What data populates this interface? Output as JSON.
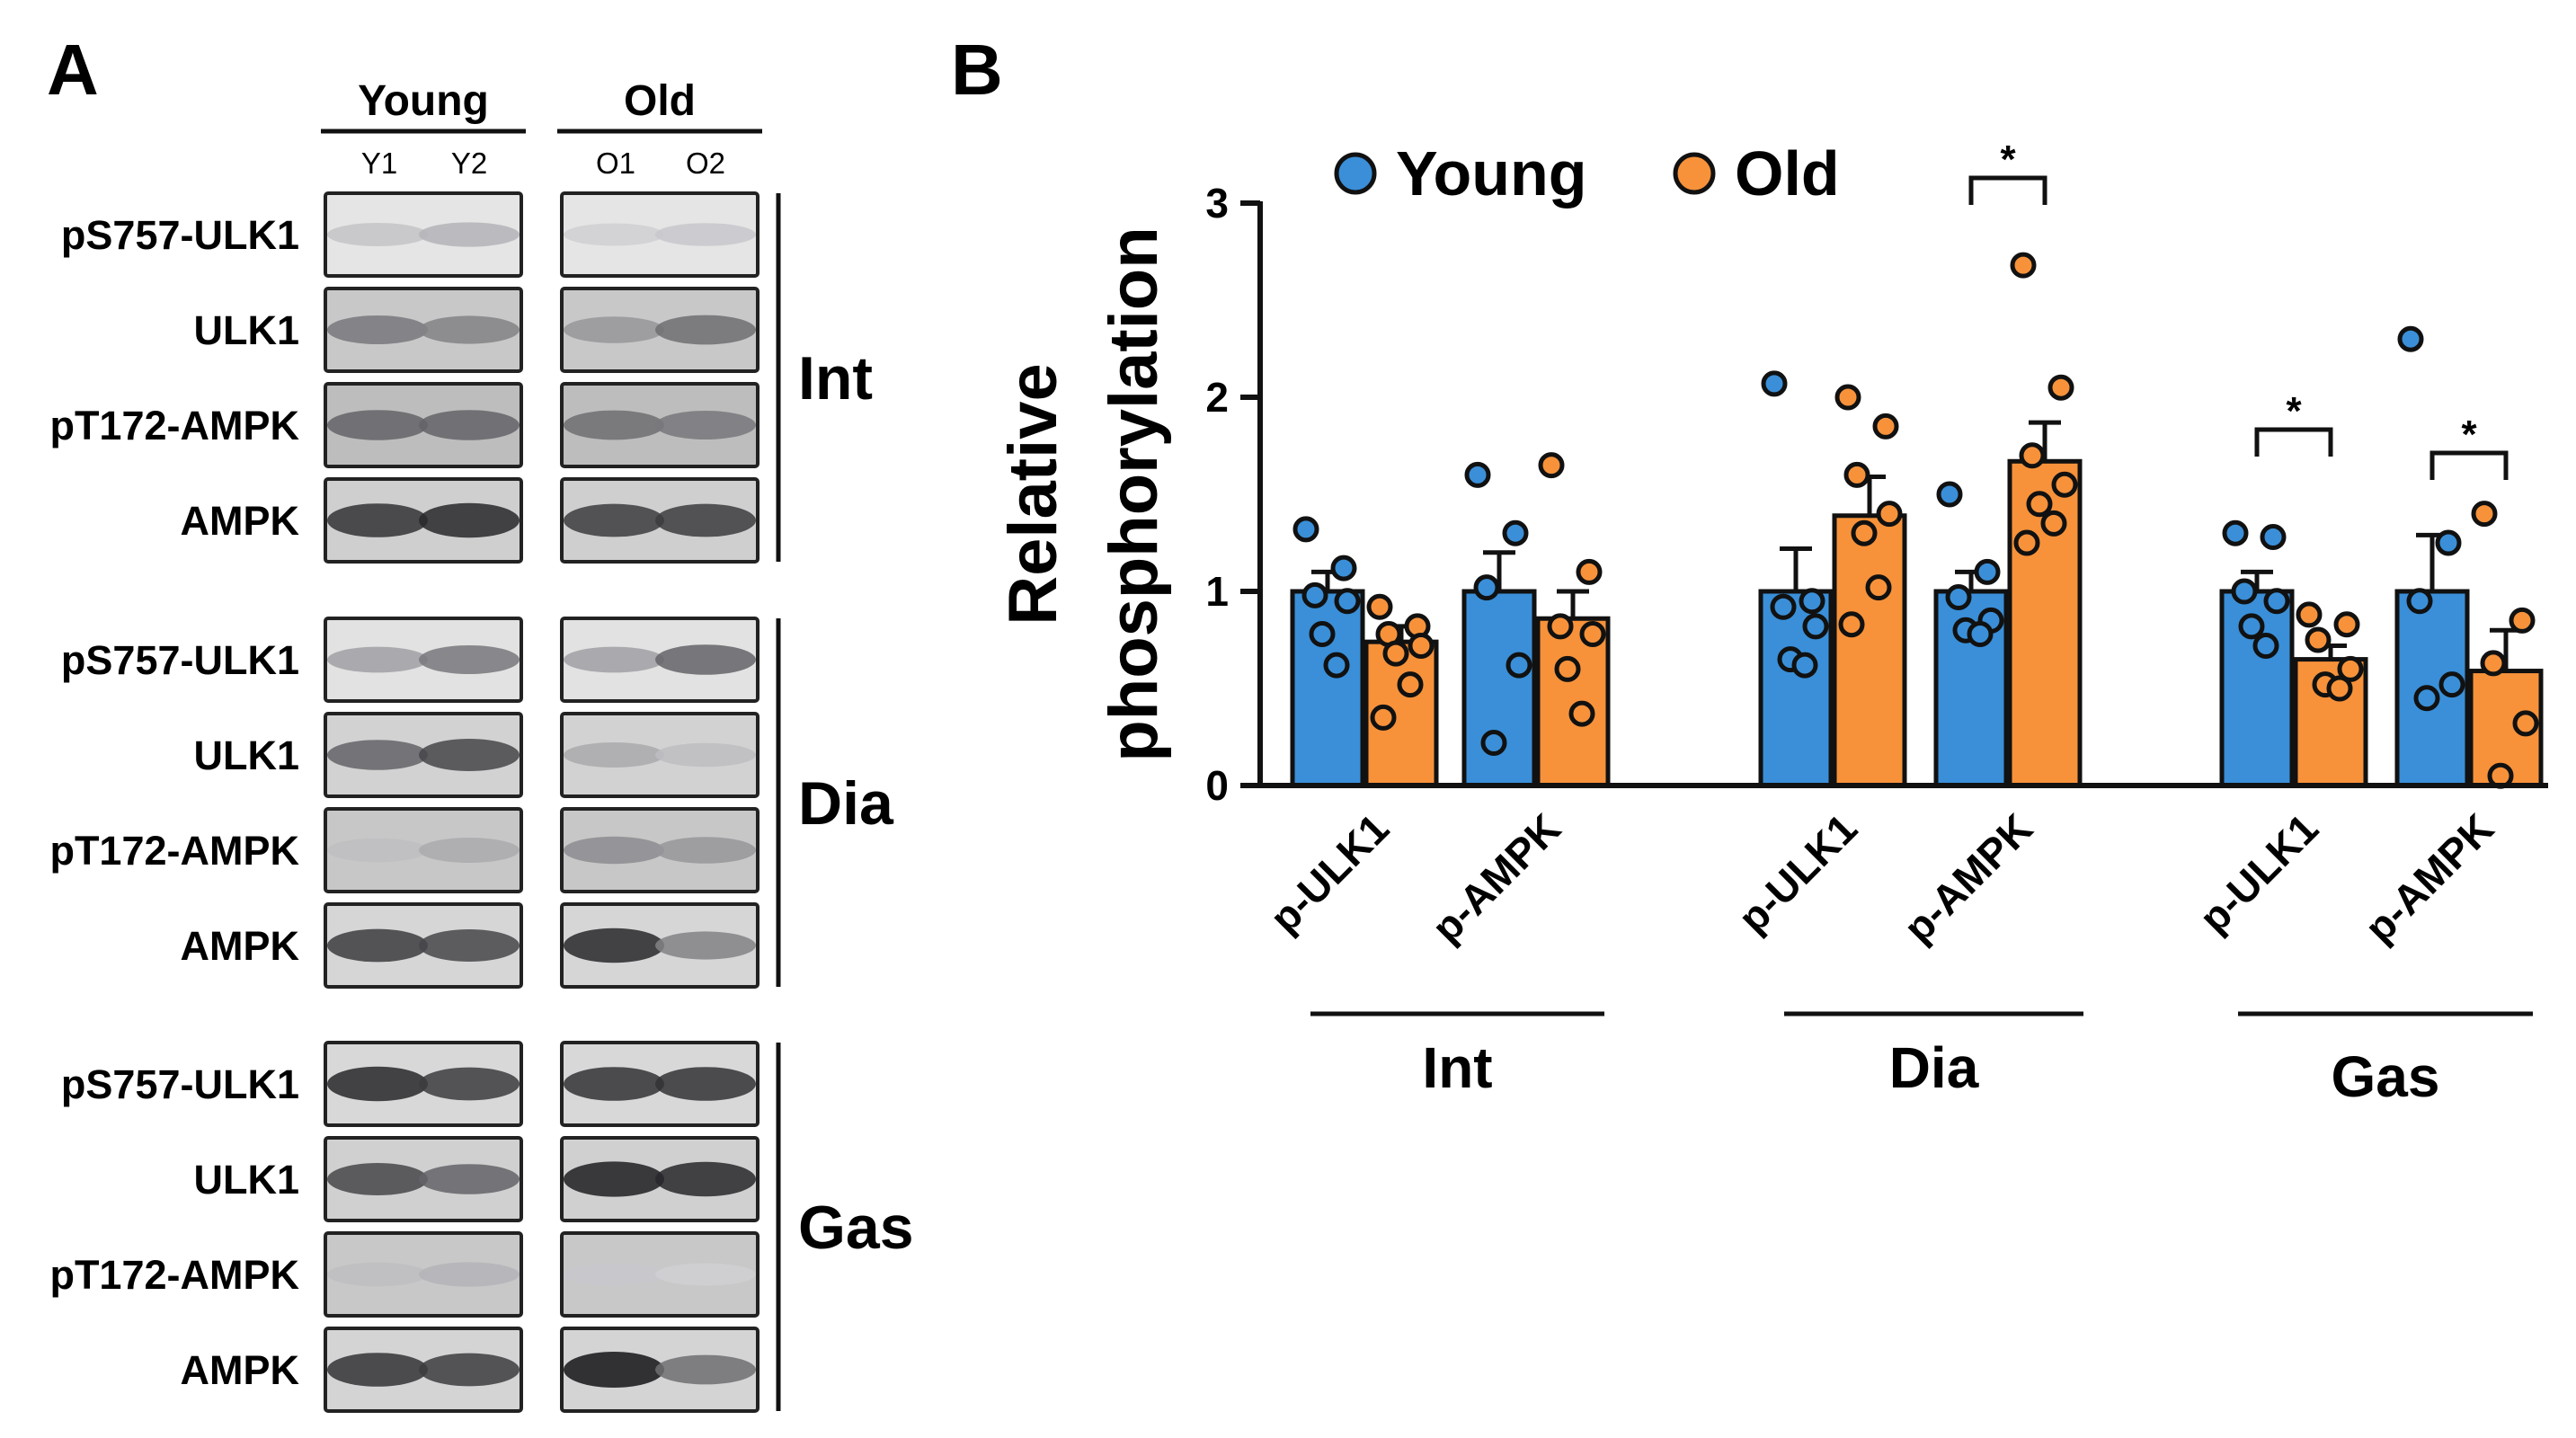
{
  "panel_a": {
    "label": "A",
    "groups": [
      {
        "name": "Young",
        "lanes": [
          "Y1",
          "Y2"
        ]
      },
      {
        "name": "Old",
        "lanes": [
          "O1",
          "O2"
        ]
      }
    ],
    "tissues": [
      {
        "name": "Int",
        "blots": [
          {
            "protein": "pS757-ULK1",
            "bg": "#e5e5e5",
            "bands": [
              0.12,
              0.2,
              0.06,
              0.1
            ]
          },
          {
            "protein": "ULK1",
            "bg": "#c8c8c8",
            "bands": [
              0.5,
              0.45,
              0.35,
              0.55
            ]
          },
          {
            "protein": "pT172-AMPK",
            "bg": "#bdbdbd",
            "bands": [
              0.6,
              0.6,
              0.55,
              0.5
            ]
          },
          {
            "protein": "AMPK",
            "bg": "#cfcfcf",
            "bands": [
              0.85,
              0.9,
              0.8,
              0.8
            ]
          }
        ]
      },
      {
        "name": "Dia",
        "blots": [
          {
            "protein": "pS757-ULK1",
            "bg": "#e2e2e2",
            "bands": [
              0.3,
              0.5,
              0.3,
              0.6
            ]
          },
          {
            "protein": "ULK1",
            "bg": "#d2d2d2",
            "bands": [
              0.6,
              0.75,
              0.25,
              0.15
            ]
          },
          {
            "protein": "pT172-AMPK",
            "bg": "#c7c7c7",
            "bands": [
              0.15,
              0.25,
              0.4,
              0.35
            ]
          },
          {
            "protein": "AMPK",
            "bg": "#d6d6d6",
            "bands": [
              0.8,
              0.75,
              0.9,
              0.45
            ]
          }
        ]
      },
      {
        "name": "Gas",
        "blots": [
          {
            "protein": "pS757-ULK1",
            "bg": "#d8d8d8",
            "bands": [
              0.9,
              0.8,
              0.85,
              0.85
            ]
          },
          {
            "protein": "ULK1",
            "bg": "#d0d0d0",
            "bands": [
              0.75,
              0.6,
              0.95,
              0.9
            ]
          },
          {
            "protein": "pT172-AMPK",
            "bg": "#c8c8c8",
            "bands": [
              0.15,
              0.2,
              0.1,
              0.06
            ]
          },
          {
            "protein": "AMPK",
            "bg": "#d4d4d4",
            "bands": [
              0.85,
              0.8,
              1.0,
              0.55
            ]
          }
        ]
      }
    ]
  },
  "chart_data": {
    "type": "bar",
    "panel_label": "B",
    "title": "",
    "ylabel_lines": [
      "Relative",
      "phosphorylation"
    ],
    "ylim": [
      0,
      3
    ],
    "yticks": [
      "0",
      "1",
      "2",
      "3"
    ],
    "legend": [
      {
        "name": "Young",
        "color": "#3a8fd8"
      },
      {
        "name": "Old",
        "color": "#f7923a"
      }
    ],
    "groups": [
      {
        "name": "Int",
        "categories": [
          {
            "label": "p-ULK1",
            "young": {
              "mean": 1.0,
              "sem": 0.1,
              "points": [
                1.32,
                1.12,
                0.98,
                0.95,
                0.78,
                0.62
              ]
            },
            "old": {
              "mean": 0.74,
              "sem": 0.08,
              "points": [
                0.92,
                0.82,
                0.78,
                0.72,
                0.68,
                0.52,
                0.35
              ]
            },
            "sig": false
          },
          {
            "label": "p-AMPK",
            "young": {
              "mean": 1.0,
              "sem": 0.2,
              "points": [
                1.6,
                1.3,
                1.02,
                0.62,
                0.22
              ]
            },
            "old": {
              "mean": 0.86,
              "sem": 0.14,
              "points": [
                1.65,
                1.1,
                0.82,
                0.78,
                0.6,
                0.37
              ]
            },
            "sig": false
          }
        ]
      },
      {
        "name": "Dia",
        "categories": [
          {
            "label": "p-ULK1",
            "young": {
              "mean": 1.0,
              "sem": 0.22,
              "points": [
                2.07,
                0.95,
                0.92,
                0.82,
                0.65,
                0.62
              ]
            },
            "old": {
              "mean": 1.39,
              "sem": 0.2,
              "points": [
                2.0,
                1.85,
                1.6,
                1.4,
                1.3,
                1.02,
                0.83
              ]
            },
            "sig": false
          },
          {
            "label": "p-AMPK",
            "young": {
              "mean": 1.0,
              "sem": 0.1,
              "points": [
                1.5,
                1.1,
                0.97,
                0.85,
                0.8,
                0.78
              ]
            },
            "old": {
              "mean": 1.67,
              "sem": 0.2,
              "points": [
                2.68,
                2.05,
                1.7,
                1.55,
                1.45,
                1.35,
                1.25
              ]
            },
            "sig": true
          }
        ]
      },
      {
        "name": "Gas",
        "categories": [
          {
            "label": "p-ULK1",
            "young": {
              "mean": 1.0,
              "sem": 0.1,
              "points": [
                1.3,
                1.28,
                1.0,
                0.95,
                0.82,
                0.72
              ]
            },
            "old": {
              "mean": 0.65,
              "sem": 0.07,
              "points": [
                0.88,
                0.83,
                0.75,
                0.6,
                0.52,
                0.5
              ]
            },
            "sig": true
          },
          {
            "label": "p-AMPK",
            "young": {
              "mean": 1.0,
              "sem": 0.29,
              "points": [
                2.3,
                1.25,
                0.95,
                0.52,
                0.45
              ]
            },
            "old": {
              "mean": 0.59,
              "sem": 0.21,
              "points": [
                1.4,
                0.85,
                0.63,
                0.32,
                0.05
              ]
            },
            "sig": true
          }
        ]
      }
    ],
    "significance_marker": "*"
  }
}
